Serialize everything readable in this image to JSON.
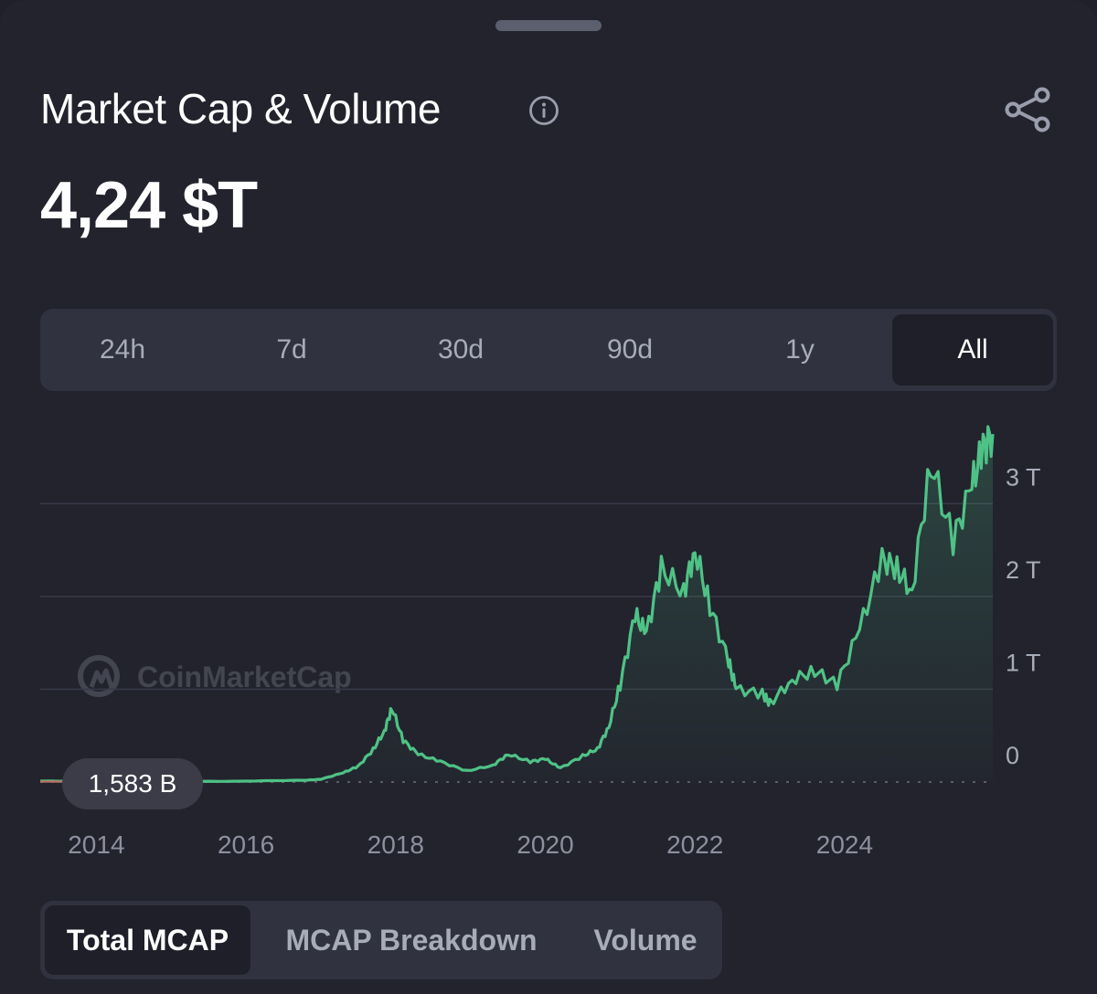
{
  "header": {
    "title": "Market Cap & Volume",
    "value": "4,24 $T"
  },
  "icons": {
    "info": "info-icon",
    "share": "share-icon"
  },
  "range_tabs": [
    "24h",
    "7d",
    "30d",
    "90d",
    "1y",
    "All"
  ],
  "range_active": "All",
  "current_label": "1,583 B",
  "watermark": "CoinMarketCap",
  "metric_tabs": [
    "Total MCAP",
    "MCAP Breakdown",
    "Volume"
  ],
  "metric_active": "Total MCAP",
  "colors": {
    "line": "#4fc286",
    "background": "#22232d",
    "gridline": "#383a48"
  },
  "chart_data": {
    "type": "area",
    "series": [
      {
        "x": [
          2013.25,
          2014.0,
          2015.0,
          2016.0,
          2016.8,
          2017.0,
          2017.3,
          2017.5,
          2017.7,
          2017.85,
          2017.95,
          2018.1,
          2018.3,
          2018.6,
          2018.95,
          2019.3,
          2019.5,
          2019.8,
          2020.0,
          2020.2,
          2020.5,
          2020.7,
          2020.85,
          2021.0,
          2021.2,
          2021.35,
          2021.55,
          2021.85,
          2022.0,
          2022.2,
          2022.45,
          2022.55,
          2022.9,
          2023.0,
          2023.3,
          2023.6,
          2023.9,
          2024.2,
          2024.5,
          2024.7,
          2024.9,
          2025.15,
          2025.45,
          2025.7,
          2025.85,
          2025.98
        ],
        "y": [
          0.01,
          0.01,
          0.005,
          0.01,
          0.02,
          0.03,
          0.1,
          0.17,
          0.35,
          0.55,
          0.8,
          0.45,
          0.3,
          0.22,
          0.12,
          0.18,
          0.3,
          0.22,
          0.25,
          0.15,
          0.28,
          0.36,
          0.6,
          1.05,
          1.8,
          1.6,
          2.3,
          2.05,
          2.5,
          1.9,
          1.3,
          1.0,
          0.95,
          0.85,
          1.1,
          1.2,
          1.05,
          1.65,
          2.4,
          2.3,
          2.05,
          3.45,
          2.6,
          3.2,
          3.6,
          3.75
        ]
      }
    ],
    "xlim": [
      2013.25,
      2025.98
    ],
    "ylim": [
      0,
      3.8
    ],
    "x_ticks": [
      "2014",
      "2016",
      "2018",
      "2020",
      "2022",
      "2024"
    ],
    "y_ticks": [
      "0",
      "1 T",
      "2 T",
      "3 T"
    ],
    "grid": true
  }
}
